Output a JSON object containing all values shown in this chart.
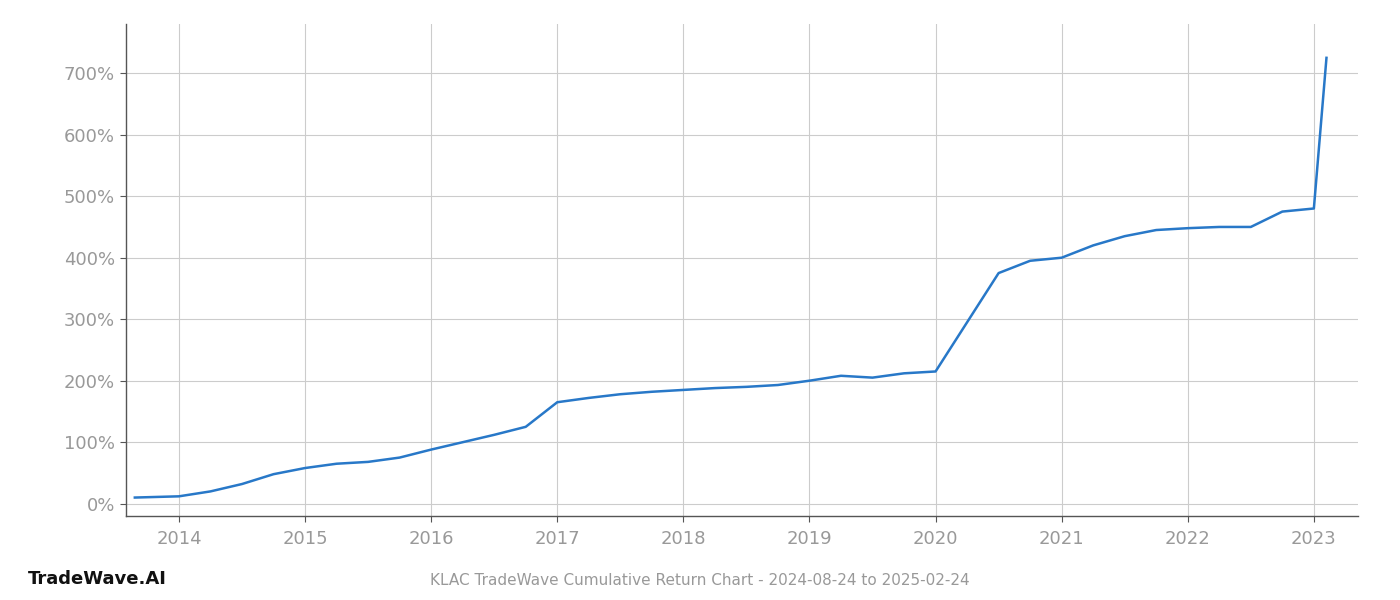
{
  "title": "KLAC TradeWave Cumulative Return Chart - 2024-08-24 to 2025-02-24",
  "watermark": "TradeWave.AI",
  "line_color": "#2878c8",
  "background_color": "#ffffff",
  "grid_color": "#cccccc",
  "tick_label_color": "#999999",
  "x_years": [
    2014,
    2015,
    2016,
    2017,
    2018,
    2019,
    2020,
    2021,
    2022,
    2023
  ],
  "x_values": [
    2013.65,
    2014.0,
    2014.25,
    2014.5,
    2014.75,
    2015.0,
    2015.25,
    2015.5,
    2015.75,
    2016.0,
    2016.25,
    2016.5,
    2016.75,
    2017.0,
    2017.25,
    2017.5,
    2017.75,
    2018.0,
    2018.25,
    2018.5,
    2018.75,
    2019.0,
    2019.25,
    2019.5,
    2019.75,
    2020.0,
    2020.25,
    2020.5,
    2020.75,
    2021.0,
    2021.25,
    2021.5,
    2021.75,
    2022.0,
    2022.25,
    2022.5,
    2022.75,
    2023.0,
    2023.1
  ],
  "y_values": [
    10,
    12,
    20,
    32,
    48,
    58,
    65,
    68,
    75,
    88,
    100,
    112,
    125,
    165,
    172,
    178,
    182,
    185,
    188,
    190,
    193,
    200,
    208,
    205,
    212,
    215,
    295,
    375,
    395,
    400,
    420,
    435,
    445,
    448,
    450,
    450,
    475,
    480,
    725
  ],
  "ylim": [
    -20,
    780
  ],
  "yticks": [
    0,
    100,
    200,
    300,
    400,
    500,
    600,
    700
  ],
  "xlim_left": 2013.58,
  "xlim_right": 2023.35,
  "title_fontsize": 11,
  "tick_fontsize": 13,
  "watermark_fontsize": 13,
  "line_width": 1.8,
  "spine_color": "#555555"
}
